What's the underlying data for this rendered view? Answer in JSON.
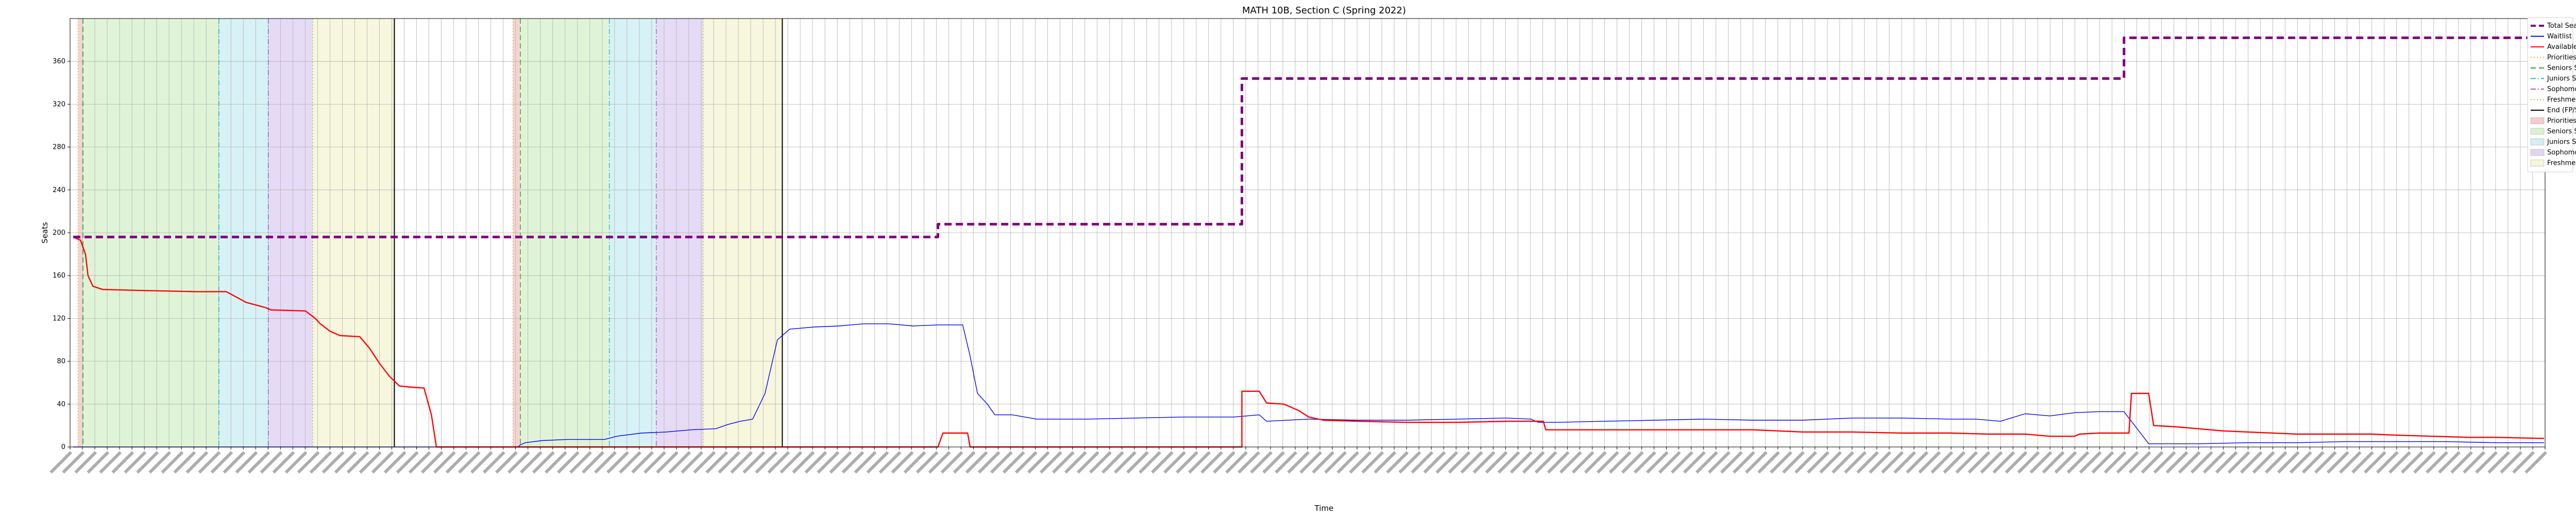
{
  "chart_data": {
    "type": "line",
    "title": "MATH 10B, Section C (Spring 2022)",
    "xlabel": "Time",
    "ylabel": "Seats",
    "ylim": [
      0,
      400
    ],
    "yticks": [
      0,
      40,
      80,
      120,
      160,
      200,
      240,
      280,
      320,
      360
    ],
    "xlim": [
      0,
      100
    ],
    "xticks_note": "dense rotated timestamp labels",
    "grid": true,
    "legend_placement": "outside-top-right",
    "series": [
      {
        "name": "Total Seats",
        "color": "#800080",
        "style": "dashed-thick",
        "points": [
          [
            0,
            196
          ],
          [
            35,
            196
          ],
          [
            35,
            208
          ],
          [
            47.3,
            208
          ],
          [
            47.3,
            344
          ],
          [
            83,
            344
          ],
          [
            83,
            382
          ],
          [
            100,
            382
          ]
        ]
      },
      {
        "name": "Waitlist",
        "color": "#0000ff",
        "style": "solid-thin",
        "points": [
          [
            0,
            0
          ],
          [
            18,
            0
          ],
          [
            18.1,
            2
          ],
          [
            18.3,
            4
          ],
          [
            19,
            6
          ],
          [
            20,
            7
          ],
          [
            21.5,
            7
          ],
          [
            22,
            10
          ],
          [
            23,
            13
          ],
          [
            24,
            14
          ],
          [
            25,
            16
          ],
          [
            26,
            17
          ],
          [
            26.5,
            21
          ],
          [
            27,
            24
          ],
          [
            27.5,
            26
          ],
          [
            28,
            50
          ],
          [
            28.5,
            100
          ],
          [
            29,
            110
          ],
          [
            30,
            112
          ],
          [
            31,
            113
          ],
          [
            32,
            115
          ],
          [
            33,
            115
          ],
          [
            34,
            113
          ],
          [
            35,
            114
          ],
          [
            36,
            114
          ],
          [
            36.3,
            85
          ],
          [
            36.6,
            50
          ],
          [
            37,
            40
          ],
          [
            37.3,
            30
          ],
          [
            38,
            30
          ],
          [
            39,
            26
          ],
          [
            41,
            26
          ],
          [
            43,
            27
          ],
          [
            45,
            28
          ],
          [
            47,
            28
          ],
          [
            48,
            30
          ],
          [
            48.3,
            24
          ],
          [
            50,
            26
          ],
          [
            52,
            25
          ],
          [
            54,
            25
          ],
          [
            56,
            26
          ],
          [
            58,
            27
          ],
          [
            59,
            26
          ],
          [
            59.3,
            23
          ],
          [
            60,
            23
          ],
          [
            62,
            24
          ],
          [
            64,
            25
          ],
          [
            66,
            26
          ],
          [
            68,
            25
          ],
          [
            70,
            25
          ],
          [
            72,
            27
          ],
          [
            74,
            27
          ],
          [
            76,
            26
          ],
          [
            77,
            26
          ],
          [
            78,
            24
          ],
          [
            79,
            31
          ],
          [
            80,
            29
          ],
          [
            81,
            32
          ],
          [
            82,
            33
          ],
          [
            83,
            33
          ],
          [
            84,
            3
          ],
          [
            86,
            3
          ],
          [
            88,
            4
          ],
          [
            90,
            4
          ],
          [
            92,
            5
          ],
          [
            94,
            5
          ],
          [
            96,
            5
          ],
          [
            98,
            4
          ],
          [
            100,
            4
          ]
        ]
      },
      {
        "name": "Available",
        "color": "#ff0000",
        "style": "solid",
        "points": [
          [
            0,
            196
          ],
          [
            0.3,
            193
          ],
          [
            0.5,
            180
          ],
          [
            0.6,
            160
          ],
          [
            0.8,
            150
          ],
          [
            1.2,
            147
          ],
          [
            3,
            146
          ],
          [
            5,
            145
          ],
          [
            6.2,
            145
          ],
          [
            6.6,
            140
          ],
          [
            7,
            135
          ],
          [
            7.8,
            130
          ],
          [
            8,
            128
          ],
          [
            9.4,
            127
          ],
          [
            9.8,
            120
          ],
          [
            10,
            115
          ],
          [
            10.4,
            108
          ],
          [
            10.8,
            104
          ],
          [
            11.6,
            103
          ],
          [
            12,
            92
          ],
          [
            12.4,
            78
          ],
          [
            12.8,
            66
          ],
          [
            13.2,
            57
          ],
          [
            13.6,
            56
          ],
          [
            14.2,
            55
          ],
          [
            14.5,
            30
          ],
          [
            14.7,
            0
          ],
          [
            35,
            0
          ],
          [
            35.2,
            13
          ],
          [
            36.2,
            13
          ],
          [
            36.3,
            0
          ],
          [
            47.3,
            0
          ],
          [
            47.3,
            52
          ],
          [
            48,
            52
          ],
          [
            48.3,
            41
          ],
          [
            49,
            40
          ],
          [
            49.6,
            34
          ],
          [
            50,
            28
          ],
          [
            50.6,
            25
          ],
          [
            52,
            24
          ],
          [
            54,
            23
          ],
          [
            56,
            23
          ],
          [
            58,
            24
          ],
          [
            59,
            24
          ],
          [
            59.5,
            24
          ],
          [
            59.6,
            16
          ],
          [
            60.6,
            16
          ],
          [
            61,
            16
          ],
          [
            66,
            16
          ],
          [
            68,
            16
          ],
          [
            70,
            14
          ],
          [
            72,
            14
          ],
          [
            74,
            13
          ],
          [
            76,
            13
          ],
          [
            77.5,
            12
          ],
          [
            79,
            12
          ],
          [
            80,
            10
          ],
          [
            81,
            10
          ],
          [
            81.2,
            12
          ],
          [
            82,
            13
          ],
          [
            83.2,
            13
          ],
          [
            83.3,
            50
          ],
          [
            84,
            50
          ],
          [
            84.2,
            20
          ],
          [
            85,
            19
          ],
          [
            86,
            17
          ],
          [
            87,
            15
          ],
          [
            88,
            14
          ],
          [
            90,
            12
          ],
          [
            93,
            12
          ],
          [
            94,
            11
          ],
          [
            97,
            9
          ],
          [
            98,
            9
          ],
          [
            100,
            8
          ]
        ]
      }
    ],
    "vlines": [
      {
        "name": "Priorities Start",
        "color": "#ffa500",
        "style": "dotted",
        "x": 0.2
      },
      {
        "name": "Seniors Start",
        "color": "#2ca02c",
        "style": "dashed",
        "x": 0.4
      },
      {
        "name": "Juniors Start",
        "color": "#17becf",
        "style": "dashdot",
        "x": 5.9
      },
      {
        "name": "Sophomores Start",
        "color": "#9467bd",
        "style": "dashdot",
        "x": 7.9
      },
      {
        "name": "Freshmen Start",
        "color": "#bcbd22",
        "style": "dotted",
        "x": 9.7
      },
      {
        "name": "End (FP/SP)",
        "color": "#000000",
        "style": "solid",
        "x": 13
      },
      {
        "name": "Priorities Start",
        "color": "#ffa500",
        "style": "dotted",
        "x": 17.8
      },
      {
        "name": "Seniors Start",
        "color": "#2ca02c",
        "style": "dashed",
        "x": 18.1
      },
      {
        "name": "Juniors Start",
        "color": "#17becf",
        "style": "dashdot",
        "x": 21.7
      },
      {
        "name": "Sophomores Start",
        "color": "#9467bd",
        "style": "dashdot",
        "x": 23.6
      },
      {
        "name": "Freshmen Start",
        "color": "#bcbd22",
        "style": "dotted",
        "x": 25.5
      },
      {
        "name": "End (FP/SP)",
        "color": "#000000",
        "style": "solid",
        "x": 28.7
      }
    ],
    "spans": [
      {
        "name": "Priorities Start",
        "color": "#f4cccc",
        "from": 0.2,
        "to": 0.4
      },
      {
        "name": "Seniors Start",
        "color": "#d9f2d0",
        "from": 0.4,
        "to": 5.9
      },
      {
        "name": "Juniors Start",
        "color": "#d0f0f4",
        "from": 5.9,
        "to": 7.9
      },
      {
        "name": "Sophomores Start",
        "color": "#e2d5f4",
        "from": 7.9,
        "to": 9.7
      },
      {
        "name": "Freshmen Start",
        "color": "#f6f6d8",
        "from": 9.7,
        "to": 13
      },
      {
        "name": "Priorities Start",
        "color": "#f4cccc",
        "from": 17.8,
        "to": 18.1
      },
      {
        "name": "Seniors Start",
        "color": "#d9f2d0",
        "from": 18.1,
        "to": 21.7
      },
      {
        "name": "Juniors Start",
        "color": "#d0f0f4",
        "from": 21.7,
        "to": 23.6
      },
      {
        "name": "Sophomores Start",
        "color": "#e2d5f4",
        "from": 23.6,
        "to": 25.5
      },
      {
        "name": "Freshmen Start",
        "color": "#f6f6d8",
        "from": 25.5,
        "to": 28.7
      }
    ],
    "legend": [
      {
        "label": "Total Seats",
        "kind": "line",
        "color": "#800080",
        "style": "dashed-thick"
      },
      {
        "label": "Waitlist",
        "kind": "line",
        "color": "#0000ff",
        "style": "solid"
      },
      {
        "label": "Available",
        "kind": "line",
        "color": "#ff0000",
        "style": "solid"
      },
      {
        "label": "Priorities Start",
        "kind": "line",
        "color": "#ffa500",
        "style": "dotted"
      },
      {
        "label": "Seniors Start",
        "kind": "line",
        "color": "#2ca02c",
        "style": "dashed"
      },
      {
        "label": "Juniors Start",
        "kind": "line",
        "color": "#17becf",
        "style": "dashdot"
      },
      {
        "label": "Sophomores Start",
        "kind": "line",
        "color": "#9467bd",
        "style": "dashdot"
      },
      {
        "label": "Freshmen Start",
        "kind": "line",
        "color": "#bcbd22",
        "style": "dotted"
      },
      {
        "label": "End (FP/SP)",
        "kind": "line",
        "color": "#000000",
        "style": "solid"
      },
      {
        "label": "Priorities Start",
        "kind": "patch",
        "color": "#f4cccc"
      },
      {
        "label": "Seniors Start",
        "kind": "patch",
        "color": "#d9f2d0"
      },
      {
        "label": "Juniors Start",
        "kind": "patch",
        "color": "#d0f0f4"
      },
      {
        "label": "Sophomores Start",
        "kind": "patch",
        "color": "#e2d5f4"
      },
      {
        "label": "Freshmen Start",
        "kind": "patch",
        "color": "#f6f6d8"
      }
    ]
  }
}
